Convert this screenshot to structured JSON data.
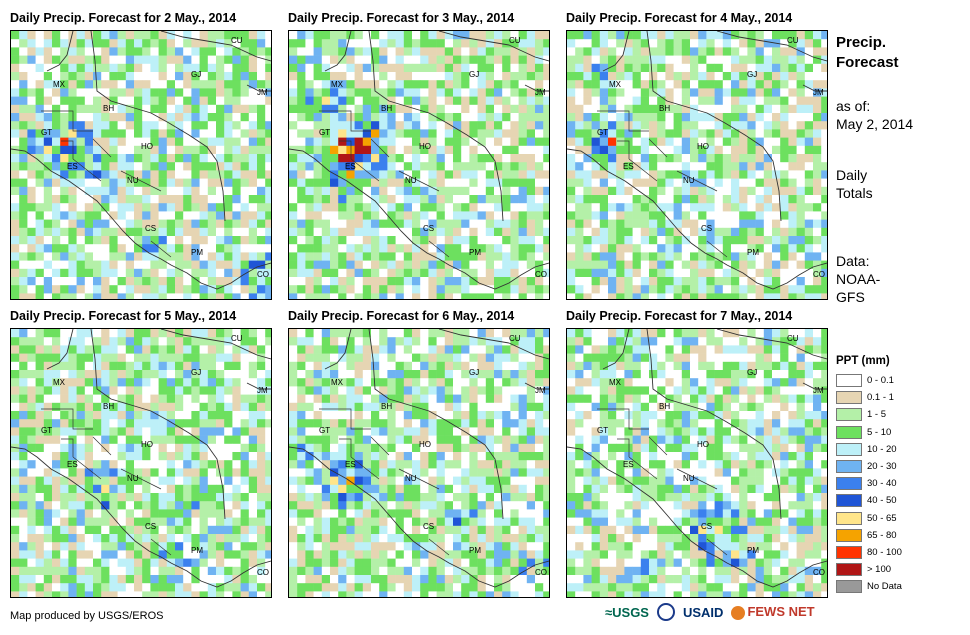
{
  "panels": [
    {
      "title": "Daily Precip. Forecast for 2 May., 2014",
      "seed": 11,
      "hot": [
        [
          0.17,
          0.42,
          0.9
        ],
        [
          0.3,
          0.48,
          0.5
        ],
        [
          0.95,
          0.9,
          0.7
        ],
        [
          0.52,
          0.78,
          0.5
        ]
      ]
    },
    {
      "title": "Daily Precip. Forecast for 3 May., 2014",
      "seed": 23,
      "hot": [
        [
          0.2,
          0.45,
          1.0
        ],
        [
          0.28,
          0.4,
          0.8
        ],
        [
          0.12,
          0.25,
          0.6
        ]
      ]
    },
    {
      "title": "Daily Precip. Forecast for 4 May., 2014",
      "seed": 37,
      "hot": [
        [
          0.15,
          0.4,
          0.7
        ],
        [
          0.1,
          0.15,
          0.5
        ],
        [
          0.65,
          0.45,
          0.4
        ]
      ]
    },
    {
      "title": "Daily Precip. Forecast for 5 May., 2014",
      "seed": 41,
      "hot": [
        [
          0.32,
          0.58,
          0.6
        ],
        [
          0.68,
          0.62,
          0.6
        ],
        [
          0.6,
          0.82,
          0.5
        ]
      ]
    },
    {
      "title": "Daily Precip. Forecast for 6 May., 2014",
      "seed": 53,
      "hot": [
        [
          0.22,
          0.55,
          0.8
        ],
        [
          0.06,
          0.45,
          0.5
        ],
        [
          0.65,
          0.7,
          0.6
        ],
        [
          0.9,
          0.85,
          0.5
        ]
      ]
    },
    {
      "title": "Daily Precip. Forecast for 7 May., 2014",
      "seed": 67,
      "hot": [
        [
          0.55,
          0.75,
          0.8
        ],
        [
          0.65,
          0.82,
          0.5
        ],
        [
          0.3,
          0.85,
          0.4
        ]
      ]
    }
  ],
  "country_labels": [
    "CU",
    "GJ",
    "JM",
    "MX",
    "BH",
    "GT",
    "HO",
    "ES",
    "NU",
    "CS",
    "PM",
    "CO"
  ],
  "sidebar": {
    "title_line1": "Precip.",
    "title_line2": "Forecast",
    "asof_line1": "as of:",
    "asof_line2": "May 2, 2014",
    "totals_line1": "Daily",
    "totals_line2": "Totals",
    "data_line1": "Data:",
    "data_line2": "NOAA-",
    "data_line3": "GFS"
  },
  "legend": {
    "title": "PPT (mm)",
    "items": [
      {
        "label": "0 - 0.1",
        "color": "#ffffff"
      },
      {
        "label": "0.1 - 1",
        "color": "#e6d5b3"
      },
      {
        "label": "1 - 5",
        "color": "#b4f0a8"
      },
      {
        "label": "5 - 10",
        "color": "#6de05f"
      },
      {
        "label": "10 - 20",
        "color": "#bdf0f8"
      },
      {
        "label": "20 - 30",
        "color": "#6fb3f2"
      },
      {
        "label": "30 - 40",
        "color": "#3b80ee"
      },
      {
        "label": "40 - 50",
        "color": "#1f55d6"
      },
      {
        "label": "50 - 65",
        "color": "#ffe58a"
      },
      {
        "label": "65 - 80",
        "color": "#f5a300"
      },
      {
        "label": "80 - 100",
        "color": "#ff3300"
      },
      {
        "label": "> 100",
        "color": "#b01616"
      },
      {
        "label": "No Data",
        "color": "#999999"
      }
    ]
  },
  "footer": {
    "credit": "Map produced by USGS/EROS",
    "logo_usgs": "USGS",
    "logo_usaid": "USAID",
    "logo_fewsnet": "FEWS NET"
  }
}
